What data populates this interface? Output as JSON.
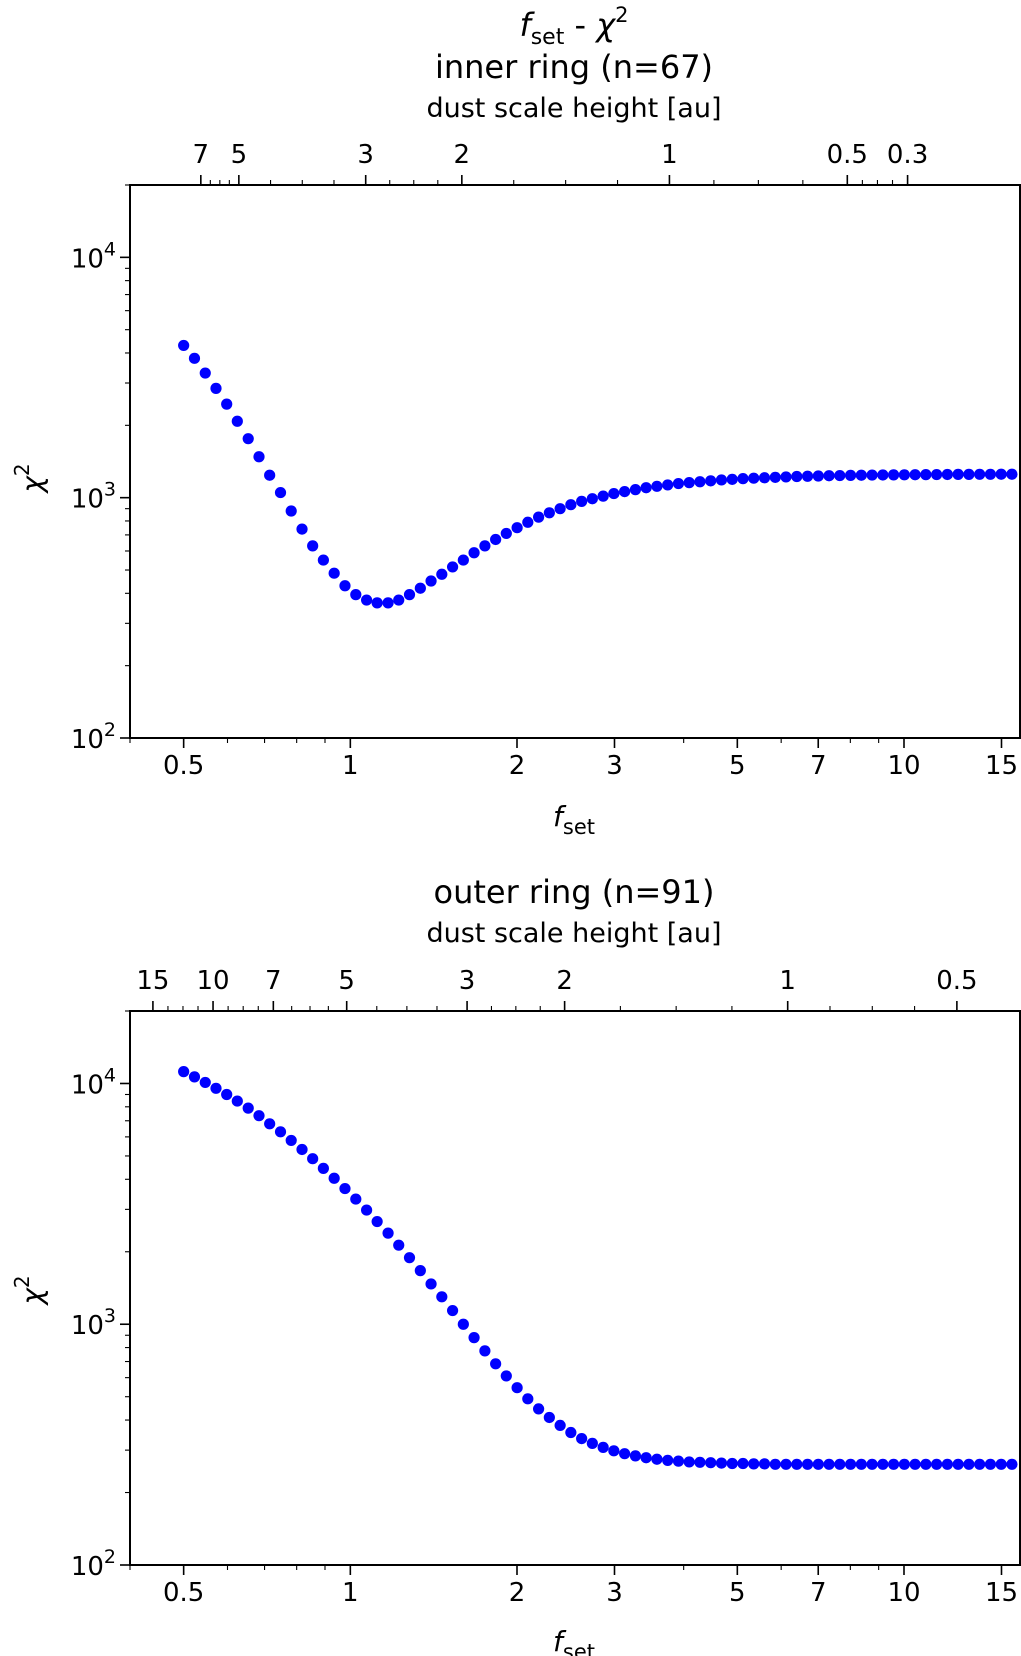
{
  "figure": {
    "suptitle": {
      "f": "f",
      "sub": "set",
      "sep": " - ",
      "chi": "χ",
      "sup": "2"
    }
  },
  "chart_data": [
    {
      "type": "scatter",
      "title": "inner ring (n=67)",
      "xlabel": {
        "f": "f",
        "sub": "set"
      },
      "ylabel": {
        "chi": "χ",
        "sup": "2"
      },
      "xscale": "log",
      "yscale": "log",
      "xlim": [
        0.4,
        16.2
      ],
      "ylim": [
        100,
        20000
      ],
      "xticks": [
        {
          "v": 0.5,
          "label": "0.5"
        },
        {
          "v": 1,
          "label": "1"
        },
        {
          "v": 2,
          "label": "2"
        },
        {
          "v": 3,
          "label": "3"
        },
        {
          "v": 5,
          "label": "5"
        },
        {
          "v": 7,
          "label": "7"
        },
        {
          "v": 10,
          "label": "10"
        },
        {
          "v": 15,
          "label": "15"
        }
      ],
      "yticks": [
        {
          "v": 100,
          "base": "10",
          "exp": "2"
        },
        {
          "v": 1000,
          "base": "10",
          "exp": "3"
        },
        {
          "v": 10000,
          "base": "10",
          "exp": "4"
        }
      ],
      "secondary_xaxis": {
        "label": "dust scale height [au]",
        "ticks": [
          {
            "label": "7",
            "at_fset": 0.537
          },
          {
            "label": "5",
            "at_fset": 0.629
          },
          {
            "label": "3",
            "at_fset": 1.066
          },
          {
            "label": "2",
            "at_fset": 1.59
          },
          {
            "label": "1",
            "at_fset": 3.77
          },
          {
            "label": "0.5",
            "at_fset": 7.9
          },
          {
            "label": "0.3",
            "at_fset": 10.15
          }
        ]
      },
      "marker_color": "#0000ff",
      "series": [
        {
          "x": [
            0.5,
            0.523,
            0.547,
            0.572,
            0.598,
            0.625,
            0.654,
            0.684,
            0.715,
            0.748,
            0.782,
            0.818,
            0.855,
            0.894,
            0.935,
            0.978,
            1.023,
            1.07,
            1.118,
            1.17,
            1.223,
            1.279,
            1.338,
            1.399,
            1.463,
            1.53,
            1.6,
            1.673,
            1.75,
            1.83,
            1.913,
            2.001,
            2.092,
            2.188,
            2.288,
            2.393,
            2.502,
            2.617,
            2.736,
            2.862,
            2.992,
            3.129,
            3.273,
            3.422,
            3.579,
            3.743,
            3.914,
            4.093,
            4.28,
            4.476,
            4.681,
            4.895,
            5.119,
            5.353,
            5.598,
            5.855,
            6.122,
            6.403,
            6.696,
            7.002,
            7.322,
            7.657,
            8.008,
            8.374,
            8.757,
            9.158,
            9.577,
            10.015,
            10.473,
            10.952,
            11.453,
            11.977,
            12.525,
            13.099,
            13.698,
            14.325,
            14.98,
            15.666
          ],
          "y": [
            4300,
            3800,
            3300,
            2850,
            2450,
            2080,
            1760,
            1480,
            1240,
            1050,
            880,
            740,
            630,
            550,
            485,
            430,
            395,
            375,
            365,
            365,
            375,
            395,
            420,
            450,
            480,
            515,
            550,
            590,
            630,
            670,
            710,
            750,
            790,
            830,
            865,
            900,
            935,
            965,
            990,
            1015,
            1040,
            1060,
            1080,
            1100,
            1115,
            1130,
            1145,
            1155,
            1165,
            1175,
            1185,
            1192,
            1200,
            1205,
            1210,
            1215,
            1220,
            1225,
            1228,
            1231,
            1234,
            1236,
            1238,
            1240,
            1242,
            1243,
            1244,
            1245,
            1246,
            1247,
            1248,
            1249,
            1250,
            1250,
            1251,
            1251,
            1252,
            1252
          ]
        }
      ]
    },
    {
      "type": "scatter",
      "title": "outer ring (n=91)",
      "xlabel": {
        "f": "f",
        "sub": "set"
      },
      "ylabel": {
        "chi": "χ",
        "sup": "2"
      },
      "xscale": "log",
      "yscale": "log",
      "xlim": [
        0.4,
        16.2
      ],
      "ylim": [
        100,
        20000
      ],
      "xticks": [
        {
          "v": 0.5,
          "label": "0.5"
        },
        {
          "v": 1,
          "label": "1"
        },
        {
          "v": 2,
          "label": "2"
        },
        {
          "v": 3,
          "label": "3"
        },
        {
          "v": 5,
          "label": "5"
        },
        {
          "v": 7,
          "label": "7"
        },
        {
          "v": 10,
          "label": "10"
        },
        {
          "v": 15,
          "label": "15"
        }
      ],
      "yticks": [
        {
          "v": 100,
          "base": "10",
          "exp": "2"
        },
        {
          "v": 1000,
          "base": "10",
          "exp": "3"
        },
        {
          "v": 10000,
          "base": "10",
          "exp": "4"
        }
      ],
      "secondary_xaxis": {
        "label": "dust scale height [au]",
        "ticks": [
          {
            "label": "15",
            "at_fset": 0.44
          },
          {
            "label": "10",
            "at_fset": 0.565
          },
          {
            "label": "7",
            "at_fset": 0.726
          },
          {
            "label": "5",
            "at_fset": 0.985
          },
          {
            "label": "3",
            "at_fset": 1.625
          },
          {
            "label": "2",
            "at_fset": 2.438
          },
          {
            "label": "1",
            "at_fset": 6.165
          },
          {
            "label": "0.5",
            "at_fset": 12.46
          }
        ]
      },
      "marker_color": "#0000ff",
      "series": [
        {
          "x": [
            0.5,
            0.523,
            0.547,
            0.572,
            0.598,
            0.625,
            0.654,
            0.684,
            0.715,
            0.748,
            0.782,
            0.818,
            0.855,
            0.894,
            0.935,
            0.978,
            1.023,
            1.07,
            1.118,
            1.17,
            1.223,
            1.279,
            1.338,
            1.399,
            1.463,
            1.53,
            1.6,
            1.673,
            1.75,
            1.83,
            1.913,
            2.001,
            2.092,
            2.188,
            2.288,
            2.393,
            2.502,
            2.617,
            2.736,
            2.862,
            2.992,
            3.129,
            3.273,
            3.422,
            3.579,
            3.743,
            3.914,
            4.093,
            4.28,
            4.476,
            4.681,
            4.895,
            5.119,
            5.353,
            5.598,
            5.855,
            6.122,
            6.403,
            6.696,
            7.002,
            7.322,
            7.657,
            8.008,
            8.374,
            8.757,
            9.158,
            9.577,
            10.015,
            10.473,
            10.952,
            11.453,
            11.977,
            12.525,
            13.099,
            13.698,
            14.325,
            14.98,
            15.666
          ],
          "y": [
            11200,
            10650,
            10100,
            9550,
            9000,
            8450,
            7900,
            7350,
            6800,
            6300,
            5800,
            5320,
            4870,
            4440,
            4040,
            3660,
            3310,
            2980,
            2670,
            2390,
            2130,
            1890,
            1670,
            1470,
            1300,
            1140,
            1000,
            880,
            775,
            685,
            610,
            545,
            490,
            445,
            410,
            380,
            355,
            335,
            320,
            308,
            298,
            290,
            284,
            279,
            275,
            272,
            270,
            268,
            267,
            266,
            265,
            264,
            264,
            263,
            263,
            262,
            262,
            262,
            262,
            262,
            262,
            262,
            262,
            262,
            262,
            262,
            262,
            262,
            262,
            262,
            262,
            262,
            262,
            262,
            262,
            262,
            262,
            262
          ]
        }
      ]
    }
  ]
}
